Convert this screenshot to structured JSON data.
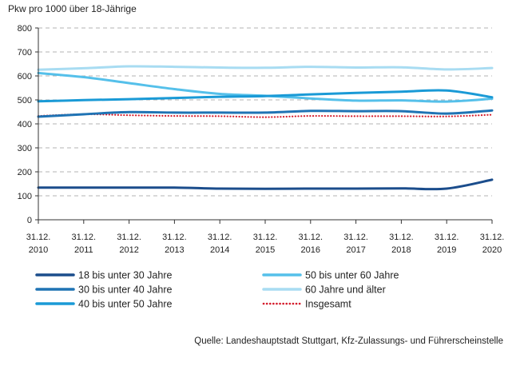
{
  "chart_data": {
    "type": "line",
    "ylabel": "Pkw pro 1000 über 18-Jährige",
    "xlabel": "",
    "ylim": [
      0,
      800
    ],
    "yticks": [
      0,
      100,
      200,
      300,
      400,
      500,
      600,
      700,
      800
    ],
    "grid": "horizontal dashed",
    "legend_position": "bottom",
    "categories": [
      {
        "line1": "31.12.",
        "line2": "2010"
      },
      {
        "line1": "31.12.",
        "line2": "2011"
      },
      {
        "line1": "31.12.",
        "line2": "2012"
      },
      {
        "line1": "31.12.",
        "line2": "2013"
      },
      {
        "line1": "31.12.",
        "line2": "2014"
      },
      {
        "line1": "31.12.",
        "line2": "2015"
      },
      {
        "line1": "31.12.",
        "line2": "2016"
      },
      {
        "line1": "31.12.",
        "line2": "2017"
      },
      {
        "line1": "31.12.",
        "line2": "2018"
      },
      {
        "line1": "31.12.",
        "line2": "2019"
      },
      {
        "line1": "31.12.",
        "line2": "2020"
      }
    ],
    "series": [
      {
        "name": "18 bis unter 30 Jahre",
        "color": "#1b4d8c",
        "width": 3,
        "style": "solid",
        "values": [
          134,
          134,
          134,
          134,
          130,
          129,
          130,
          130,
          131,
          130,
          167
        ]
      },
      {
        "name": "30 bis unter 40 Jahre",
        "color": "#1f73b4",
        "width": 3,
        "style": "solid",
        "values": [
          430,
          440,
          449,
          447,
          447,
          447,
          454,
          453,
          453,
          443,
          456
        ]
      },
      {
        "name": "40 bis unter 50 Jahre",
        "color": "#1a9ad6",
        "width": 3,
        "style": "solid",
        "values": [
          494,
          499,
          503,
          508,
          513,
          516,
          523,
          529,
          534,
          539,
          511
        ]
      },
      {
        "name": "50 bis unter 60 Jahre",
        "color": "#55c0ea",
        "width": 3,
        "style": "solid",
        "values": [
          612,
          595,
          570,
          545,
          525,
          517,
          506,
          497,
          498,
          493,
          505
        ]
      },
      {
        "name": "60 Jahre und älter",
        "color": "#a8dcf2",
        "width": 3,
        "style": "solid",
        "values": [
          626,
          632,
          640,
          638,
          635,
          634,
          638,
          635,
          636,
          627,
          633
        ]
      },
      {
        "name": "Insgesamt",
        "color": "#d41c2c",
        "width": 2.2,
        "style": "dotted",
        "values": [
          433,
          440,
          436,
          433,
          432,
          428,
          433,
          432,
          432,
          431,
          438
        ]
      }
    ]
  },
  "source": "Quelle: Landeshauptstadt Stuttgart, Kfz-Zulassungs- und Führerscheinstelle"
}
